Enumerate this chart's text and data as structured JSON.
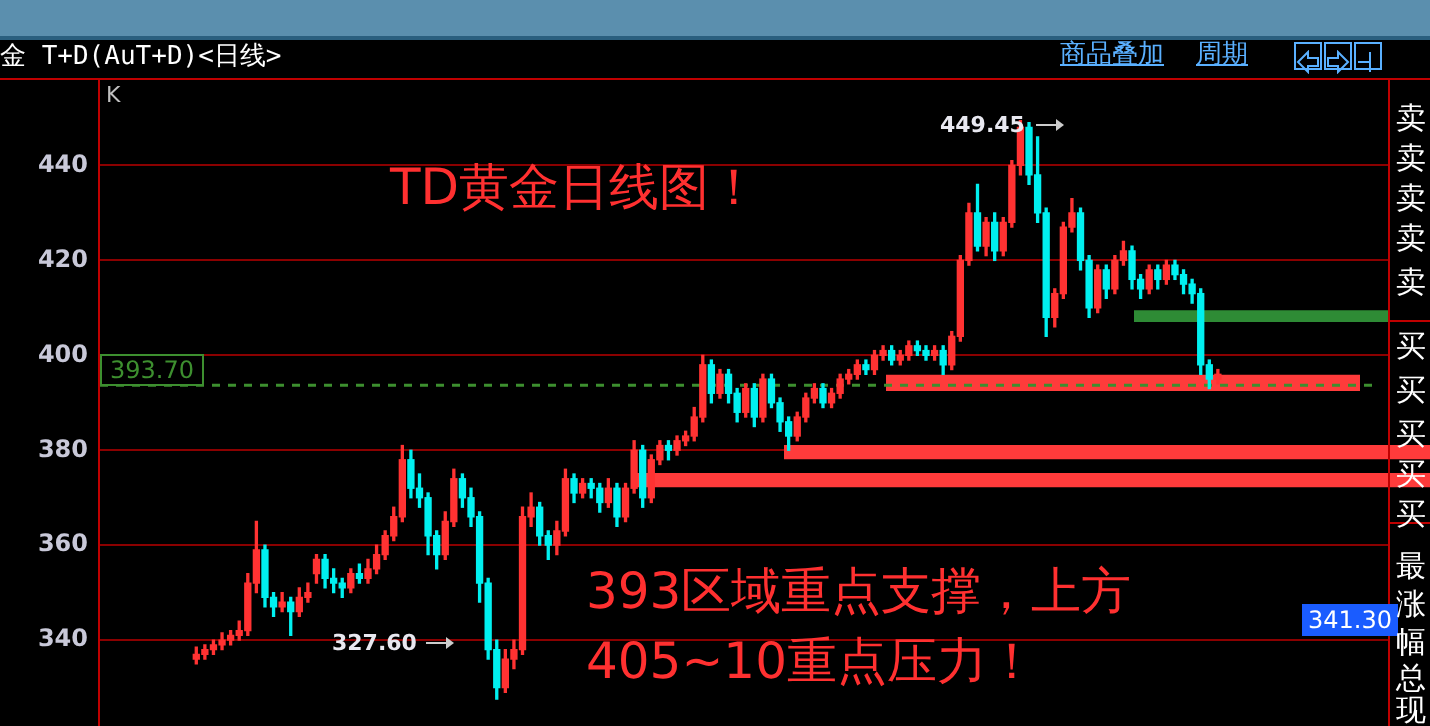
{
  "chart_data": {
    "type": "candlestick",
    "title": "金 T+D(AuT+D)<日线>",
    "annotations": [
      "K",
      "TD黄金日线图！",
      "393区域重点支撑，上方",
      "405~10重点压力！",
      "商品叠加",
      "周期",
      "449.45",
      "327.60",
      "341.30",
      "卖",
      "卖",
      "卖",
      "卖",
      "卖",
      "买",
      "买",
      "买",
      "买",
      "买",
      "最",
      "涨",
      "幅",
      "总",
      "现"
    ],
    "categories": [
      null,
      null,
      null,
      null,
      null,
      null,
      null,
      null,
      null,
      null,
      null,
      null,
      null,
      null,
      null,
      null,
      null,
      null,
      null,
      null,
      null,
      null,
      null,
      null,
      null,
      null,
      null,
      null,
      null,
      null,
      null,
      null,
      null,
      null,
      null,
      null,
      null,
      null,
      null,
      null,
      null,
      null,
      null,
      null,
      null,
      null,
      null,
      null,
      null,
      null,
      null,
      null,
      null,
      null,
      null,
      null,
      null,
      null,
      null,
      null,
      null,
      null,
      null,
      null,
      null,
      null,
      null,
      null,
      null,
      null,
      null,
      null,
      null,
      null,
      null,
      null,
      null,
      null,
      null,
      null,
      null,
      null,
      null,
      null,
      null,
      null,
      null,
      null,
      null,
      null,
      null,
      null,
      null,
      null,
      null,
      null,
      null,
      null,
      null,
      null,
      null,
      null,
      null,
      null,
      null,
      null,
      null,
      null,
      null,
      null,
      null,
      null,
      null,
      null,
      null,
      null,
      null,
      null,
      null,
      null
    ],
    "ohlc": [
      [
        336,
        338.5,
        335,
        337
      ],
      [
        337,
        339,
        336,
        338
      ],
      [
        338,
        340,
        337,
        339
      ],
      [
        339,
        341.5,
        338,
        340
      ],
      [
        340,
        342,
        339,
        341
      ],
      [
        341,
        344,
        340,
        342
      ],
      [
        342,
        354,
        341,
        352
      ],
      [
        352,
        365,
        350,
        359
      ],
      [
        359,
        360,
        347,
        349
      ],
      [
        349,
        350,
        345,
        347
      ],
      [
        347,
        350,
        346,
        348
      ],
      [
        348,
        349,
        341,
        346
      ],
      [
        346,
        351,
        345,
        349
      ],
      [
        349,
        352,
        348,
        350
      ],
      [
        354,
        358,
        352,
        357
      ],
      [
        357,
        358,
        351,
        353
      ],
      [
        353,
        355,
        350,
        352
      ],
      [
        352,
        353,
        349,
        351
      ],
      [
        351,
        355,
        350,
        354
      ],
      [
        354,
        356,
        352,
        353
      ],
      [
        353,
        357,
        352,
        355
      ],
      [
        355,
        360,
        354,
        358
      ],
      [
        358,
        363,
        357,
        362
      ],
      [
        362,
        368,
        361,
        366
      ],
      [
        366,
        381,
        365,
        378
      ],
      [
        378,
        380,
        370,
        372
      ],
      [
        372,
        375,
        368,
        370
      ],
      [
        370,
        371,
        358,
        362
      ],
      [
        362,
        363,
        355,
        358
      ],
      [
        358,
        367,
        357,
        365
      ],
      [
        365,
        376,
        364,
        374
      ],
      [
        374,
        375,
        368,
        370
      ],
      [
        370,
        372,
        364,
        366
      ],
      [
        366,
        367,
        348,
        352
      ],
      [
        352,
        353,
        336,
        338
      ],
      [
        338,
        340,
        327.6,
        330
      ],
      [
        330,
        338,
        329,
        336
      ],
      [
        336,
        340,
        334,
        338
      ],
      [
        338,
        368,
        337,
        366
      ],
      [
        366,
        371,
        364,
        368
      ],
      [
        368,
        369,
        360,
        362
      ],
      [
        362,
        363,
        357,
        360
      ],
      [
        360,
        365,
        358,
        363
      ],
      [
        363,
        376,
        362,
        374
      ],
      [
        374,
        375,
        369,
        371
      ],
      [
        371,
        374,
        370,
        373
      ],
      [
        373,
        374,
        370,
        372
      ],
      [
        372,
        373,
        367,
        369
      ],
      [
        369,
        374,
        368,
        372
      ],
      [
        372,
        373,
        364,
        366
      ],
      [
        366,
        373,
        365,
        372
      ],
      [
        372,
        382,
        371,
        380
      ],
      [
        380,
        381,
        368,
        370
      ],
      [
        370,
        379,
        369,
        378
      ],
      [
        378,
        382,
        377,
        381
      ],
      [
        381,
        382,
        378,
        380
      ],
      [
        380,
        383,
        379,
        382
      ],
      [
        382,
        384,
        381,
        383
      ],
      [
        383,
        389,
        382,
        387
      ],
      [
        387,
        400,
        386,
        398
      ],
      [
        398,
        399,
        390,
        392
      ],
      [
        392,
        397,
        391,
        396
      ],
      [
        396,
        397,
        390,
        392
      ],
      [
        392,
        393,
        386,
        388
      ],
      [
        388,
        394,
        387,
        393
      ],
      [
        393,
        394,
        385,
        387
      ],
      [
        387,
        396,
        386,
        395
      ],
      [
        395,
        396,
        389,
        390
      ],
      [
        390,
        391,
        384,
        386
      ],
      [
        386,
        387,
        380,
        383
      ],
      [
        383,
        388,
        382,
        387
      ],
      [
        387,
        392,
        386,
        391
      ],
      [
        391,
        394,
        390,
        393
      ],
      [
        393,
        394,
        389,
        390
      ],
      [
        390,
        393,
        389,
        392
      ],
      [
        392,
        396,
        391,
        395
      ],
      [
        395,
        397,
        394,
        396
      ],
      [
        396,
        399,
        395,
        398
      ],
      [
        398,
        399,
        396,
        397
      ],
      [
        397,
        401,
        396,
        400
      ],
      [
        400,
        402,
        399,
        401
      ],
      [
        401,
        402,
        398,
        399
      ],
      [
        399,
        401,
        398,
        400
      ],
      [
        400,
        403,
        399,
        402
      ],
      [
        402,
        403,
        400,
        401
      ],
      [
        401,
        402,
        399,
        400
      ],
      [
        400,
        402,
        399,
        401
      ],
      [
        401,
        402,
        396,
        398
      ],
      [
        398,
        405,
        397,
        404
      ],
      [
        404,
        421,
        403,
        420
      ],
      [
        420,
        432,
        419,
        430
      ],
      [
        430,
        436,
        422,
        423
      ],
      [
        423,
        429,
        421,
        428
      ],
      [
        428,
        430,
        420,
        422
      ],
      [
        422,
        429,
        421,
        428
      ],
      [
        428,
        441,
        427,
        440
      ],
      [
        440,
        449.45,
        438,
        448
      ],
      [
        448,
        449,
        436,
        438
      ],
      [
        438,
        446,
        428,
        430
      ],
      [
        430,
        431,
        404,
        408
      ],
      [
        408,
        414,
        406,
        413
      ],
      [
        413,
        428,
        412,
        427
      ],
      [
        427,
        433,
        426,
        430
      ],
      [
        430,
        431,
        418,
        420
      ],
      [
        420,
        421,
        408,
        410
      ],
      [
        410,
        419,
        409,
        418
      ],
      [
        418,
        419,
        412,
        414
      ],
      [
        414,
        421,
        413,
        420
      ],
      [
        420,
        424,
        419,
        422
      ],
      [
        422,
        423,
        414,
        416
      ],
      [
        416,
        417,
        412,
        414
      ],
      [
        414,
        419,
        413,
        418
      ],
      [
        418,
        419,
        414,
        416
      ],
      [
        416,
        420,
        415,
        419
      ],
      [
        419,
        420,
        416,
        417
      ],
      [
        417,
        418,
        413,
        415
      ],
      [
        415,
        416,
        411,
        413
      ],
      [
        413,
        414,
        396,
        398
      ],
      [
        398,
        399,
        393,
        395
      ],
      [
        395,
        397,
        394,
        396
      ]
    ],
    "ylim": [
      322,
      458
    ],
    "yticks": [
      340,
      360,
      380,
      400,
      420,
      440
    ],
    "grid": "y",
    "tick_labels": "y",
    "ref_lines": [
      {
        "axis": "y",
        "value": 393.7,
        "label": "393.70",
        "color": "#3d8f2f",
        "line_style": "dashed"
      }
    ],
    "bands": [
      {
        "axis": "y",
        "from": 392.5,
        "to": 395.9,
        "color": "#ff3b3b"
      },
      {
        "axis": "y",
        "from": 407,
        "to": 409.5,
        "color": "#2e8b35"
      },
      {
        "axis": "y",
        "from": 378.1,
        "to": 381.1,
        "color": "#ff3b3b"
      },
      {
        "axis": "y",
        "from": 372.2,
        "to": 375.2,
        "color": "#ff3b3b"
      }
    ]
  }
}
